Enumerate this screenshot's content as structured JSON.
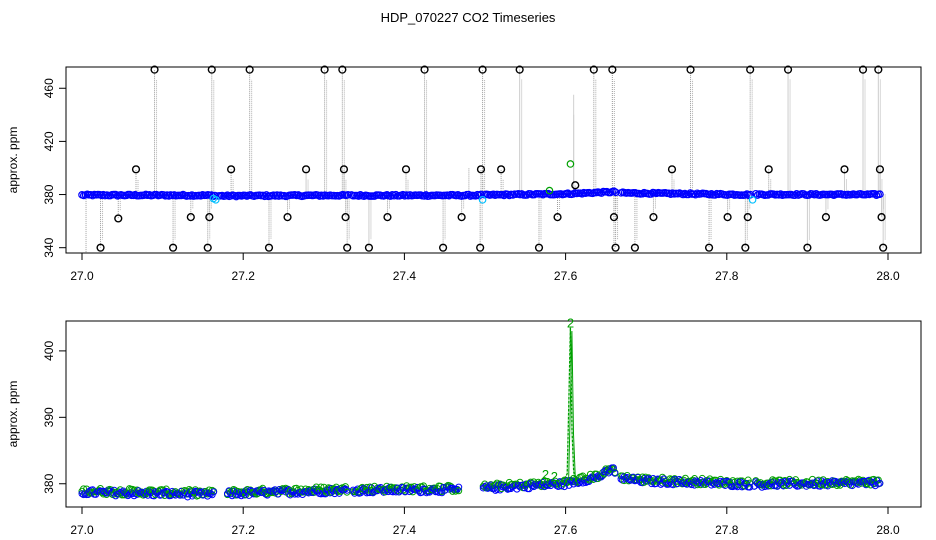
{
  "figure_title": "HDP_070227  CO2 Timeseries",
  "chart_data": [
    {
      "type": "scatter",
      "ylabel": "approx. ppm",
      "xlim": [
        27.0,
        28.0
      ],
      "ylim": [
        336,
        476
      ],
      "x_ticks": [
        "27.0",
        "27.2",
        "27.4",
        "27.6",
        "27.8",
        "28.0"
      ],
      "y_ticks": [
        "340",
        "380",
        "420",
        "460"
      ],
      "series": [
        {
          "color": "#0000ff",
          "gaps": [
            [
              27.165,
              27.168
            ],
            [
              27.33,
              27.333
            ],
            [
              27.496,
              27.499
            ],
            [
              27.663,
              27.667
            ],
            [
              27.83,
              27.834
            ]
          ],
          "baseline": [
            [
              27.0,
              379.6
            ],
            [
              27.16,
              379.4
            ],
            [
              27.17,
              379.0
            ],
            [
              27.33,
              379.4
            ],
            [
              27.335,
              379.3
            ],
            [
              27.49,
              379.4
            ],
            [
              27.5,
              379.6
            ],
            [
              27.6,
              380.5
            ],
            [
              27.66,
              382.0
            ],
            [
              27.67,
              381.2
            ],
            [
              27.83,
              379.9
            ],
            [
              27.835,
              380.1
            ],
            [
              27.99,
              380.0
            ]
          ]
        },
        {
          "color": "#000000",
          "outlier_points": [
            [
              27.023,
              340
            ],
            [
              27.045,
              362
            ],
            [
              27.067,
              399
            ],
            [
              27.09,
              474
            ],
            [
              27.113,
              340
            ],
            [
              27.135,
              363
            ],
            [
              27.156,
              340
            ],
            [
              27.158,
              363
            ],
            [
              27.161,
              474
            ],
            [
              27.185,
              399
            ],
            [
              27.208,
              474
            ],
            [
              27.232,
              340
            ],
            [
              27.255,
              363
            ],
            [
              27.278,
              399
            ],
            [
              27.301,
              474
            ],
            [
              27.323,
              474
            ],
            [
              27.325,
              399
            ],
            [
              27.327,
              363
            ],
            [
              27.329,
              340
            ],
            [
              27.356,
              340
            ],
            [
              27.379,
              363
            ],
            [
              27.402,
              399
            ],
            [
              27.425,
              474
            ],
            [
              27.448,
              340
            ],
            [
              27.471,
              363
            ],
            [
              27.495,
              399
            ],
            [
              27.494,
              340
            ],
            [
              27.497,
              474
            ],
            [
              27.52,
              399
            ],
            [
              27.543,
              474
            ],
            [
              27.567,
              340
            ],
            [
              27.59,
              363
            ],
            [
              27.612,
              387
            ],
            [
              27.635,
              474
            ],
            [
              27.658,
              474
            ],
            [
              27.66,
              363
            ],
            [
              27.662,
              340
            ],
            [
              27.686,
              340
            ],
            [
              27.709,
              363
            ],
            [
              27.732,
              399
            ],
            [
              27.755,
              474
            ],
            [
              27.778,
              340
            ],
            [
              27.801,
              363
            ],
            [
              27.823,
              340
            ],
            [
              27.826,
              363
            ],
            [
              27.829,
              474
            ],
            [
              27.852,
              399
            ],
            [
              27.876,
              474
            ],
            [
              27.9,
              340
            ],
            [
              27.923,
              363
            ],
            [
              27.946,
              399
            ],
            [
              27.969,
              474
            ],
            [
              27.988,
              474
            ],
            [
              27.99,
              399
            ],
            [
              27.992,
              363
            ],
            [
              27.994,
              340
            ]
          ]
        },
        {
          "color": "#00bfff",
          "points": [
            [
              27.163,
              377
            ],
            [
              27.166,
              376
            ],
            [
              27.497,
              376
            ],
            [
              27.832,
              376
            ]
          ]
        },
        {
          "color": "#00a000",
          "points": [
            [
              27.58,
              383
            ],
            [
              27.606,
              403
            ]
          ]
        }
      ]
    },
    {
      "type": "scatter",
      "ylabel": "approx. ppm",
      "xlim": [
        27.0,
        28.0
      ],
      "ylim": [
        376.5,
        404.5
      ],
      "x_ticks": [
        "27.0",
        "27.2",
        "27.4",
        "27.6",
        "27.8",
        "28.0"
      ],
      "y_ticks": [
        "380",
        "390",
        "400"
      ],
      "series": [
        {
          "color": "#0000ff",
          "gaps": [
            [
              27.165,
              27.18
            ],
            [
              27.33,
              27.335
            ],
            [
              27.468,
              27.497
            ],
            [
              27.663,
              27.667
            ],
            [
              27.83,
              27.834
            ]
          ],
          "baseline": [
            [
              27.0,
              378.7
            ],
            [
              27.16,
              378.4
            ],
            [
              27.18,
              378.5
            ],
            [
              27.33,
              379.0
            ],
            [
              27.335,
              379.0
            ],
            [
              27.47,
              379.1
            ],
            [
              27.497,
              379.3
            ],
            [
              27.6,
              380.0
            ],
            [
              27.64,
              381.0
            ],
            [
              27.66,
              382.2
            ],
            [
              27.665,
              380.8
            ],
            [
              27.7,
              380.4
            ],
            [
              27.83,
              379.9
            ],
            [
              27.835,
              379.9
            ],
            [
              27.99,
              380.1
            ]
          ]
        },
        {
          "color": "#00a000",
          "spike": [
            [
              27.596,
              380.2
            ],
            [
              27.602,
              381.5
            ],
            [
              27.604,
              392
            ],
            [
              27.606,
              403.5
            ],
            [
              27.608,
              388
            ],
            [
              27.61,
              381.8
            ],
            [
              27.613,
              380.3
            ]
          ],
          "labels": [
            {
              "x": 27.575,
              "y": 381.5,
              "text": "2"
            },
            {
              "x": 27.586,
              "y": 381.2,
              "text": "2"
            },
            {
              "x": 27.606,
              "y": 404.3,
              "text": "2"
            }
          ]
        }
      ]
    }
  ]
}
